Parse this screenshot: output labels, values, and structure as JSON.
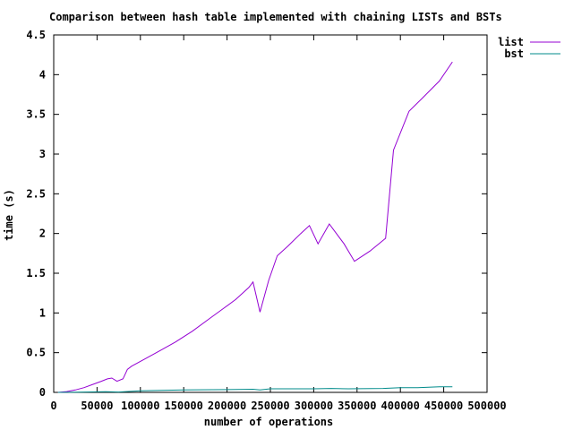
{
  "chart_data": {
    "type": "line",
    "title": "Comparison between hash table implemented with chaining LISTs and BSTs",
    "xlabel": "number of operations",
    "ylabel": "time (s)",
    "xlim": [
      0,
      500000
    ],
    "ylim": [
      0,
      4.5
    ],
    "xticks": [
      "0",
      "50000",
      "100000",
      "150000",
      "200000",
      "250000",
      "300000",
      "350000",
      "400000",
      "450000",
      "500000"
    ],
    "yticks": [
      "0",
      "0.5",
      "1",
      "1.5",
      "2",
      "2.5",
      "3",
      "3.5",
      "4",
      "4.5"
    ],
    "xtick_values": [
      0,
      50000,
      100000,
      150000,
      200000,
      250000,
      300000,
      350000,
      400000,
      450000,
      500000
    ],
    "ytick_values": [
      0,
      0.5,
      1,
      1.5,
      2,
      2.5,
      3,
      3.5,
      4,
      4.5
    ],
    "grid": false,
    "legend_position": "outside top-right",
    "series": [
      {
        "name": "list",
        "color": "#9400d3",
        "points": [
          [
            5000,
            0.0
          ],
          [
            15000,
            0.01
          ],
          [
            25000,
            0.03
          ],
          [
            35000,
            0.06
          ],
          [
            45000,
            0.1
          ],
          [
            55000,
            0.14
          ],
          [
            62000,
            0.17
          ],
          [
            67000,
            0.18
          ],
          [
            73000,
            0.14
          ],
          [
            80000,
            0.17
          ],
          [
            85000,
            0.29
          ],
          [
            90000,
            0.33
          ],
          [
            100000,
            0.39
          ],
          [
            120000,
            0.51
          ],
          [
            140000,
            0.63
          ],
          [
            160000,
            0.77
          ],
          [
            180000,
            0.93
          ],
          [
            195000,
            1.05
          ],
          [
            210000,
            1.17
          ],
          [
            225000,
            1.32
          ],
          [
            230000,
            1.39
          ],
          [
            238000,
            1.01
          ],
          [
            248000,
            1.41
          ],
          [
            258000,
            1.72
          ],
          [
            270000,
            1.84
          ],
          [
            285000,
            2.0
          ],
          [
            295000,
            2.1
          ],
          [
            305000,
            1.87
          ],
          [
            318000,
            2.12
          ],
          [
            335000,
            1.87
          ],
          [
            347000,
            1.65
          ],
          [
            365000,
            1.78
          ],
          [
            383000,
            1.94
          ],
          [
            392000,
            3.05
          ],
          [
            410000,
            3.54
          ],
          [
            425000,
            3.7
          ],
          [
            445000,
            3.92
          ],
          [
            460000,
            4.16
          ]
        ]
      },
      {
        "name": "bst",
        "color": "#008b8b",
        "points": [
          [
            5000,
            0.0
          ],
          [
            30000,
            0.002
          ],
          [
            60000,
            0.008
          ],
          [
            75000,
            0.005
          ],
          [
            100000,
            0.02
          ],
          [
            150000,
            0.03
          ],
          [
            200000,
            0.035
          ],
          [
            230000,
            0.04
          ],
          [
            238000,
            0.03
          ],
          [
            250000,
            0.045
          ],
          [
            300000,
            0.045
          ],
          [
            320000,
            0.05
          ],
          [
            340000,
            0.045
          ],
          [
            380000,
            0.05
          ],
          [
            400000,
            0.06
          ],
          [
            420000,
            0.06
          ],
          [
            445000,
            0.07
          ],
          [
            460000,
            0.07
          ]
        ]
      }
    ]
  }
}
